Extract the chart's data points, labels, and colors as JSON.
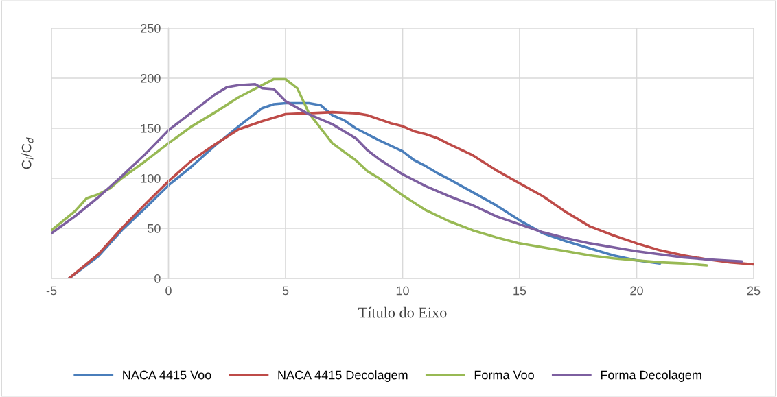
{
  "chart_data": {
    "type": "line",
    "xlabel": "Título do Eixo",
    "ylabel": "C$_{l}$/C$_{d}$",
    "xlim": [
      -5,
      25
    ],
    "xticks": [
      -5,
      0,
      5,
      10,
      15,
      20,
      25
    ],
    "ylim": [
      0,
      250
    ],
    "yticks": [
      0,
      50,
      100,
      150,
      200,
      250
    ],
    "grid": true,
    "legend": "bottom",
    "marker": "none",
    "line_style": "solid",
    "series": [
      {
        "name": "NACA 4415 Voo",
        "color": "#4a7ebb",
        "x": [
          -4.25,
          -3,
          -2,
          -1,
          0,
          1,
          2,
          3,
          4,
          4.5,
          5,
          6,
          6.5,
          7,
          7.5,
          8,
          9,
          10,
          10.5,
          11,
          11.5,
          12,
          13,
          14,
          15,
          16,
          17,
          18,
          19,
          20,
          21
        ],
        "values": [
          0,
          22,
          48,
          70,
          93,
          112,
          133,
          152,
          170,
          174,
          175,
          175,
          173,
          163,
          158,
          150,
          138,
          127,
          118,
          112,
          105,
          99,
          86,
          73,
          58,
          45,
          37,
          30,
          23,
          18,
          15
        ]
      },
      {
        "name": "NACA 4415 Decolagem",
        "color": "#be4b48",
        "x": [
          -4.25,
          -3,
          -2,
          -1,
          0,
          1,
          2,
          3,
          4,
          5,
          6,
          7,
          8,
          8.5,
          9,
          9.5,
          10,
          10.5,
          11,
          11.5,
          12,
          13,
          14,
          15,
          16,
          17,
          18,
          19,
          20,
          21,
          22,
          23,
          24,
          25
        ],
        "values": [
          0,
          24,
          50,
          74,
          97,
          118,
          134,
          149,
          157,
          164,
          165,
          166,
          165,
          163,
          159,
          155,
          152,
          147,
          144,
          140,
          134,
          123,
          108,
          95,
          82,
          66,
          52,
          43,
          35,
          28,
          23,
          19,
          16,
          14
        ]
      },
      {
        "name": "Forma Voo",
        "color": "#98b954",
        "x": [
          -5,
          -4,
          -3.5,
          -3,
          -2.5,
          -2,
          -1,
          0,
          1,
          2,
          3,
          4,
          4.5,
          5,
          5.5,
          6,
          6.5,
          7,
          8,
          8.5,
          9,
          10,
          11,
          12,
          13,
          14,
          15,
          16,
          17,
          18,
          19,
          20,
          21,
          22,
          23
        ],
        "values": [
          48,
          67,
          80,
          84,
          90,
          100,
          117,
          135,
          152,
          166,
          181,
          193,
          199,
          199,
          190,
          165,
          150,
          135,
          118,
          107,
          100,
          83,
          68,
          57,
          48,
          41,
          35,
          31,
          27,
          23,
          20,
          18,
          16,
          15,
          13
        ]
      },
      {
        "name": "Forma Decolagem",
        "color": "#7d5fa0",
        "x": [
          -5,
          -4,
          -3,
          -2,
          -1,
          0,
          1,
          2,
          2.5,
          3,
          3.7,
          4,
          4.5,
          5,
          6,
          7,
          8,
          8.5,
          9,
          10,
          11,
          12,
          13,
          14,
          15,
          16,
          17,
          18,
          19,
          20,
          21,
          22,
          23,
          24.5
        ],
        "values": [
          45,
          62,
          81,
          102,
          124,
          148,
          166,
          184,
          191,
          193,
          194,
          190,
          189,
          177,
          164,
          154,
          140,
          128,
          119,
          104,
          92,
          82,
          73,
          62,
          54,
          46,
          40,
          35,
          31,
          27,
          24,
          21,
          19,
          17
        ]
      }
    ]
  }
}
